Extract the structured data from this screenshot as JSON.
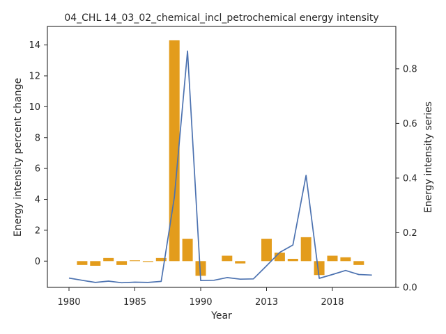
{
  "chart_data": {
    "type": "bar+line",
    "title": "04_CHL 14_03_02_chemical_incl_petrochemical energy intensity",
    "xlabel": "Year",
    "ylabel_left": "Energy intensity percent change",
    "ylabel_right": "Energy intensity series",
    "x_tick_labels": [
      "1980",
      "1985",
      "1990",
      "2013",
      "2018"
    ],
    "y_left_ticks": [
      "0",
      "2",
      "4",
      "6",
      "8",
      "10",
      "12",
      "14"
    ],
    "y_right_ticks": [
      "0.0",
      "0.2",
      "0.4",
      "0.6",
      "0.8"
    ],
    "y_left_lim": [
      -1.7,
      15.2
    ],
    "y_right_lim": [
      0.0,
      0.955
    ],
    "bar_color": "#e39c1c",
    "line_color": "#4c72b0",
    "bars": [
      {
        "slot": 1,
        "value": -0.25
      },
      {
        "slot": 2,
        "value": -0.3
      },
      {
        "slot": 3,
        "value": 0.2
      },
      {
        "slot": 4,
        "value": -0.25
      },
      {
        "slot": 5,
        "value": 0.05
      },
      {
        "slot": 6,
        "value": -0.05
      },
      {
        "slot": 7,
        "value": 0.2
      },
      {
        "slot": 8,
        "value": 14.3
      },
      {
        "slot": 9,
        "value": 1.45
      },
      {
        "slot": 10,
        "value": -0.95
      },
      {
        "slot": 12,
        "value": 0.35
      },
      {
        "slot": 13,
        "value": -0.15
      },
      {
        "slot": 15,
        "value": 1.45
      },
      {
        "slot": 16,
        "value": 0.55
      },
      {
        "slot": 17,
        "value": 0.15
      },
      {
        "slot": 18,
        "value": 1.55
      },
      {
        "slot": 19,
        "value": -0.9
      },
      {
        "slot": 20,
        "value": 0.35
      },
      {
        "slot": 21,
        "value": 0.25
      },
      {
        "slot": 22,
        "value": -0.25
      }
    ],
    "series": [
      {
        "slot": 0,
        "value": 0.034
      },
      {
        "slot": 1,
        "value": 0.026
      },
      {
        "slot": 2,
        "value": 0.018
      },
      {
        "slot": 3,
        "value": 0.023
      },
      {
        "slot": 4,
        "value": 0.017
      },
      {
        "slot": 5,
        "value": 0.019
      },
      {
        "slot": 6,
        "value": 0.018
      },
      {
        "slot": 7,
        "value": 0.022
      },
      {
        "slot": 8,
        "value": 0.33
      },
      {
        "slot": 9,
        "value": 0.865
      },
      {
        "slot": 10,
        "value": 0.025
      },
      {
        "slot": 11,
        "value": 0.026
      },
      {
        "slot": 12,
        "value": 0.036
      },
      {
        "slot": 13,
        "value": 0.03
      },
      {
        "slot": 14,
        "value": 0.031
      },
      {
        "slot": 15,
        "value": 0.079
      },
      {
        "slot": 16,
        "value": 0.128
      },
      {
        "slot": 17,
        "value": 0.155
      },
      {
        "slot": 18,
        "value": 0.41
      },
      {
        "slot": 19,
        "value": 0.033
      },
      {
        "slot": 20,
        "value": 0.047
      },
      {
        "slot": 21,
        "value": 0.062
      },
      {
        "slot": 22,
        "value": 0.047
      },
      {
        "slot": 23,
        "value": 0.045
      }
    ],
    "x_ticks": [
      {
        "label": "1980",
        "slot": 0
      },
      {
        "label": "1985",
        "slot": 5
      },
      {
        "label": "1990",
        "slot": 10
      },
      {
        "label": "2013",
        "slot": 15
      },
      {
        "label": "2018",
        "slot": 20
      }
    ],
    "grid": false,
    "legend": "none"
  }
}
